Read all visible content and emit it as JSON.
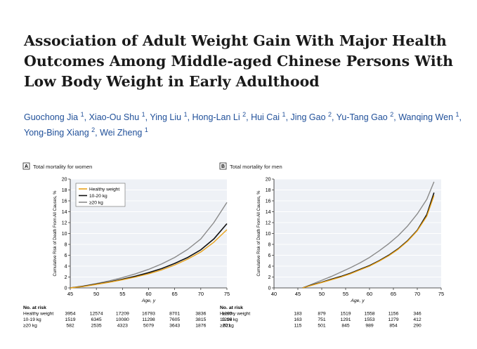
{
  "title": "Association of Adult Weight Gain With Major Health Outcomes Among Middle-aged Chinese Persons With Low Body Weight in Early Adulthood",
  "authors": [
    {
      "name": "Guochong Jia",
      "aff": "1"
    },
    {
      "name": "Xiao-Ou Shu",
      "aff": "1"
    },
    {
      "name": "Ying Liu",
      "aff": "1"
    },
    {
      "name": "Hong-Lan Li",
      "aff": "2"
    },
    {
      "name": "Hui Cai",
      "aff": "1"
    },
    {
      "name": "Jing Gao",
      "aff": "2"
    },
    {
      "name": "Yu-Tang Gao",
      "aff": "2"
    },
    {
      "name": "Wanqing Wen",
      "aff": "1"
    },
    {
      "name": "Yong-Bing Xiang",
      "aff": "2"
    },
    {
      "name": "Wei Zheng",
      "aff": "1"
    }
  ],
  "figure": {
    "ylabel": "Cumulative Risk of Death From All Causes, %",
    "xlabel": "Age, y",
    "at_risk_heading": "No. at risk",
    "legend": [
      "Healthy weight",
      "10-20 kg",
      "≥20 kg"
    ],
    "colors": {
      "healthy": "#e8a21a",
      "gain10": "#111111",
      "gain20": "#8a8a8a"
    }
  },
  "chart_data": [
    {
      "type": "line",
      "panel": "A",
      "title": "Total mortality for women",
      "xlabel": "Age, y",
      "ylabel": "Cumulative Risk of Death From All Causes, %",
      "xlim": [
        45,
        75
      ],
      "ylim": [
        0,
        20
      ],
      "xticks": [
        45,
        50,
        55,
        60,
        65,
        70,
        75
      ],
      "yticks": [
        0,
        2,
        4,
        6,
        8,
        10,
        12,
        14,
        16,
        18,
        20
      ],
      "grid": true,
      "legend_position": "top-left",
      "series": [
        {
          "name": "Healthy weight",
          "color": "#e8a21a",
          "x": [
            45,
            47.5,
            50,
            52.5,
            55,
            57.5,
            60,
            62.5,
            65,
            67.5,
            70,
            72.5,
            75
          ],
          "y": [
            0,
            0.25,
            0.65,
            1.05,
            1.5,
            2.0,
            2.6,
            3.3,
            4.2,
            5.3,
            6.6,
            8.4,
            10.7
          ]
        },
        {
          "name": "10-20 kg",
          "color": "#111111",
          "x": [
            45,
            47.5,
            50,
            52.5,
            55,
            57.5,
            60,
            62.5,
            65,
            67.5,
            70,
            72.5,
            75
          ],
          "y": [
            0,
            0.3,
            0.7,
            1.1,
            1.6,
            2.15,
            2.8,
            3.55,
            4.5,
            5.6,
            7.0,
            9.0,
            11.8
          ]
        },
        {
          "name": "≥20 kg",
          "color": "#8a8a8a",
          "x": [
            45,
            47.5,
            50,
            52.5,
            55,
            57.5,
            60,
            62.5,
            65,
            67.5,
            70,
            72.5,
            75
          ],
          "y": [
            0,
            0.35,
            0.8,
            1.3,
            1.9,
            2.6,
            3.4,
            4.4,
            5.6,
            7.1,
            9.0,
            12.0,
            15.7
          ]
        }
      ],
      "at_risk": {
        "x": [
          45,
          50,
          55,
          60,
          65,
          70,
          75
        ],
        "rows": [
          {
            "label": "Healthy weight",
            "values": [
              "3954",
              "12574",
              "17209",
              "16793",
              "8701",
              "3836",
              "1290"
            ]
          },
          {
            "label": "10-19 kg",
            "values": [
              "1519",
              "6345",
              "10080",
              "11298",
              "7605",
              "3815",
              "1294"
            ]
          },
          {
            "label": "≥20 kg",
            "values": [
              "582",
              "2535",
              "4323",
              "5079",
              "3643",
              "1876",
              "621"
            ]
          }
        ]
      }
    },
    {
      "type": "line",
      "panel": "B",
      "title": "Total mortality for men",
      "xlabel": "Age, y",
      "ylabel": "Cumulative Risk of Death From All Causes, %",
      "xlim": [
        40,
        75
      ],
      "ylim": [
        0,
        20
      ],
      "xticks": [
        40,
        45,
        50,
        55,
        60,
        65,
        70,
        75
      ],
      "yticks": [
        0,
        2,
        4,
        6,
        8,
        10,
        12,
        14,
        16,
        18,
        20
      ],
      "grid": true,
      "series": [
        {
          "name": "Healthy weight",
          "color": "#e8a21a",
          "x": [
            46,
            48,
            50,
            52,
            54,
            56,
            58,
            60,
            62,
            64,
            66,
            68,
            70,
            72,
            73.5
          ],
          "y": [
            0,
            0.5,
            1.0,
            1.5,
            2.0,
            2.6,
            3.3,
            4.0,
            4.9,
            5.9,
            7.1,
            8.6,
            10.5,
            13.2,
            17.0
          ]
        },
        {
          "name": "10-20 kg",
          "color": "#111111",
          "x": [
            46,
            48,
            50,
            52,
            54,
            56,
            58,
            60,
            62,
            64,
            66,
            68,
            70,
            72,
            73.5
          ],
          "y": [
            0,
            0.55,
            1.05,
            1.6,
            2.1,
            2.7,
            3.4,
            4.1,
            5.0,
            6.0,
            7.2,
            8.7,
            10.6,
            13.5,
            17.5
          ]
        },
        {
          "name": "≥20 kg",
          "color": "#8a8a8a",
          "x": [
            46,
            48,
            50,
            52,
            54,
            56,
            58,
            60,
            62,
            64,
            66,
            68,
            70,
            72,
            73.5
          ],
          "y": [
            0,
            0.7,
            1.4,
            2.1,
            2.9,
            3.7,
            4.6,
            5.6,
            6.8,
            8.1,
            9.6,
            11.4,
            13.6,
            16.3,
            19.5
          ]
        }
      ],
      "at_risk": {
        "x": [
          45,
          50,
          55,
          60,
          65,
          70,
          75
        ],
        "rows": [
          {
            "label": "Healthy weight",
            "values": [
              "183",
              "879",
              "1519",
              "1558",
              "1156",
              "346",
              ""
            ]
          },
          {
            "label": "10-19 kg",
            "values": [
              "163",
              "751",
              "1291",
              "1553",
              "1279",
              "412",
              ""
            ]
          },
          {
            "label": "≥20 kg",
            "values": [
              "115",
              "501",
              "845",
              "989",
              "854",
              "290",
              ""
            ]
          }
        ]
      }
    }
  ]
}
